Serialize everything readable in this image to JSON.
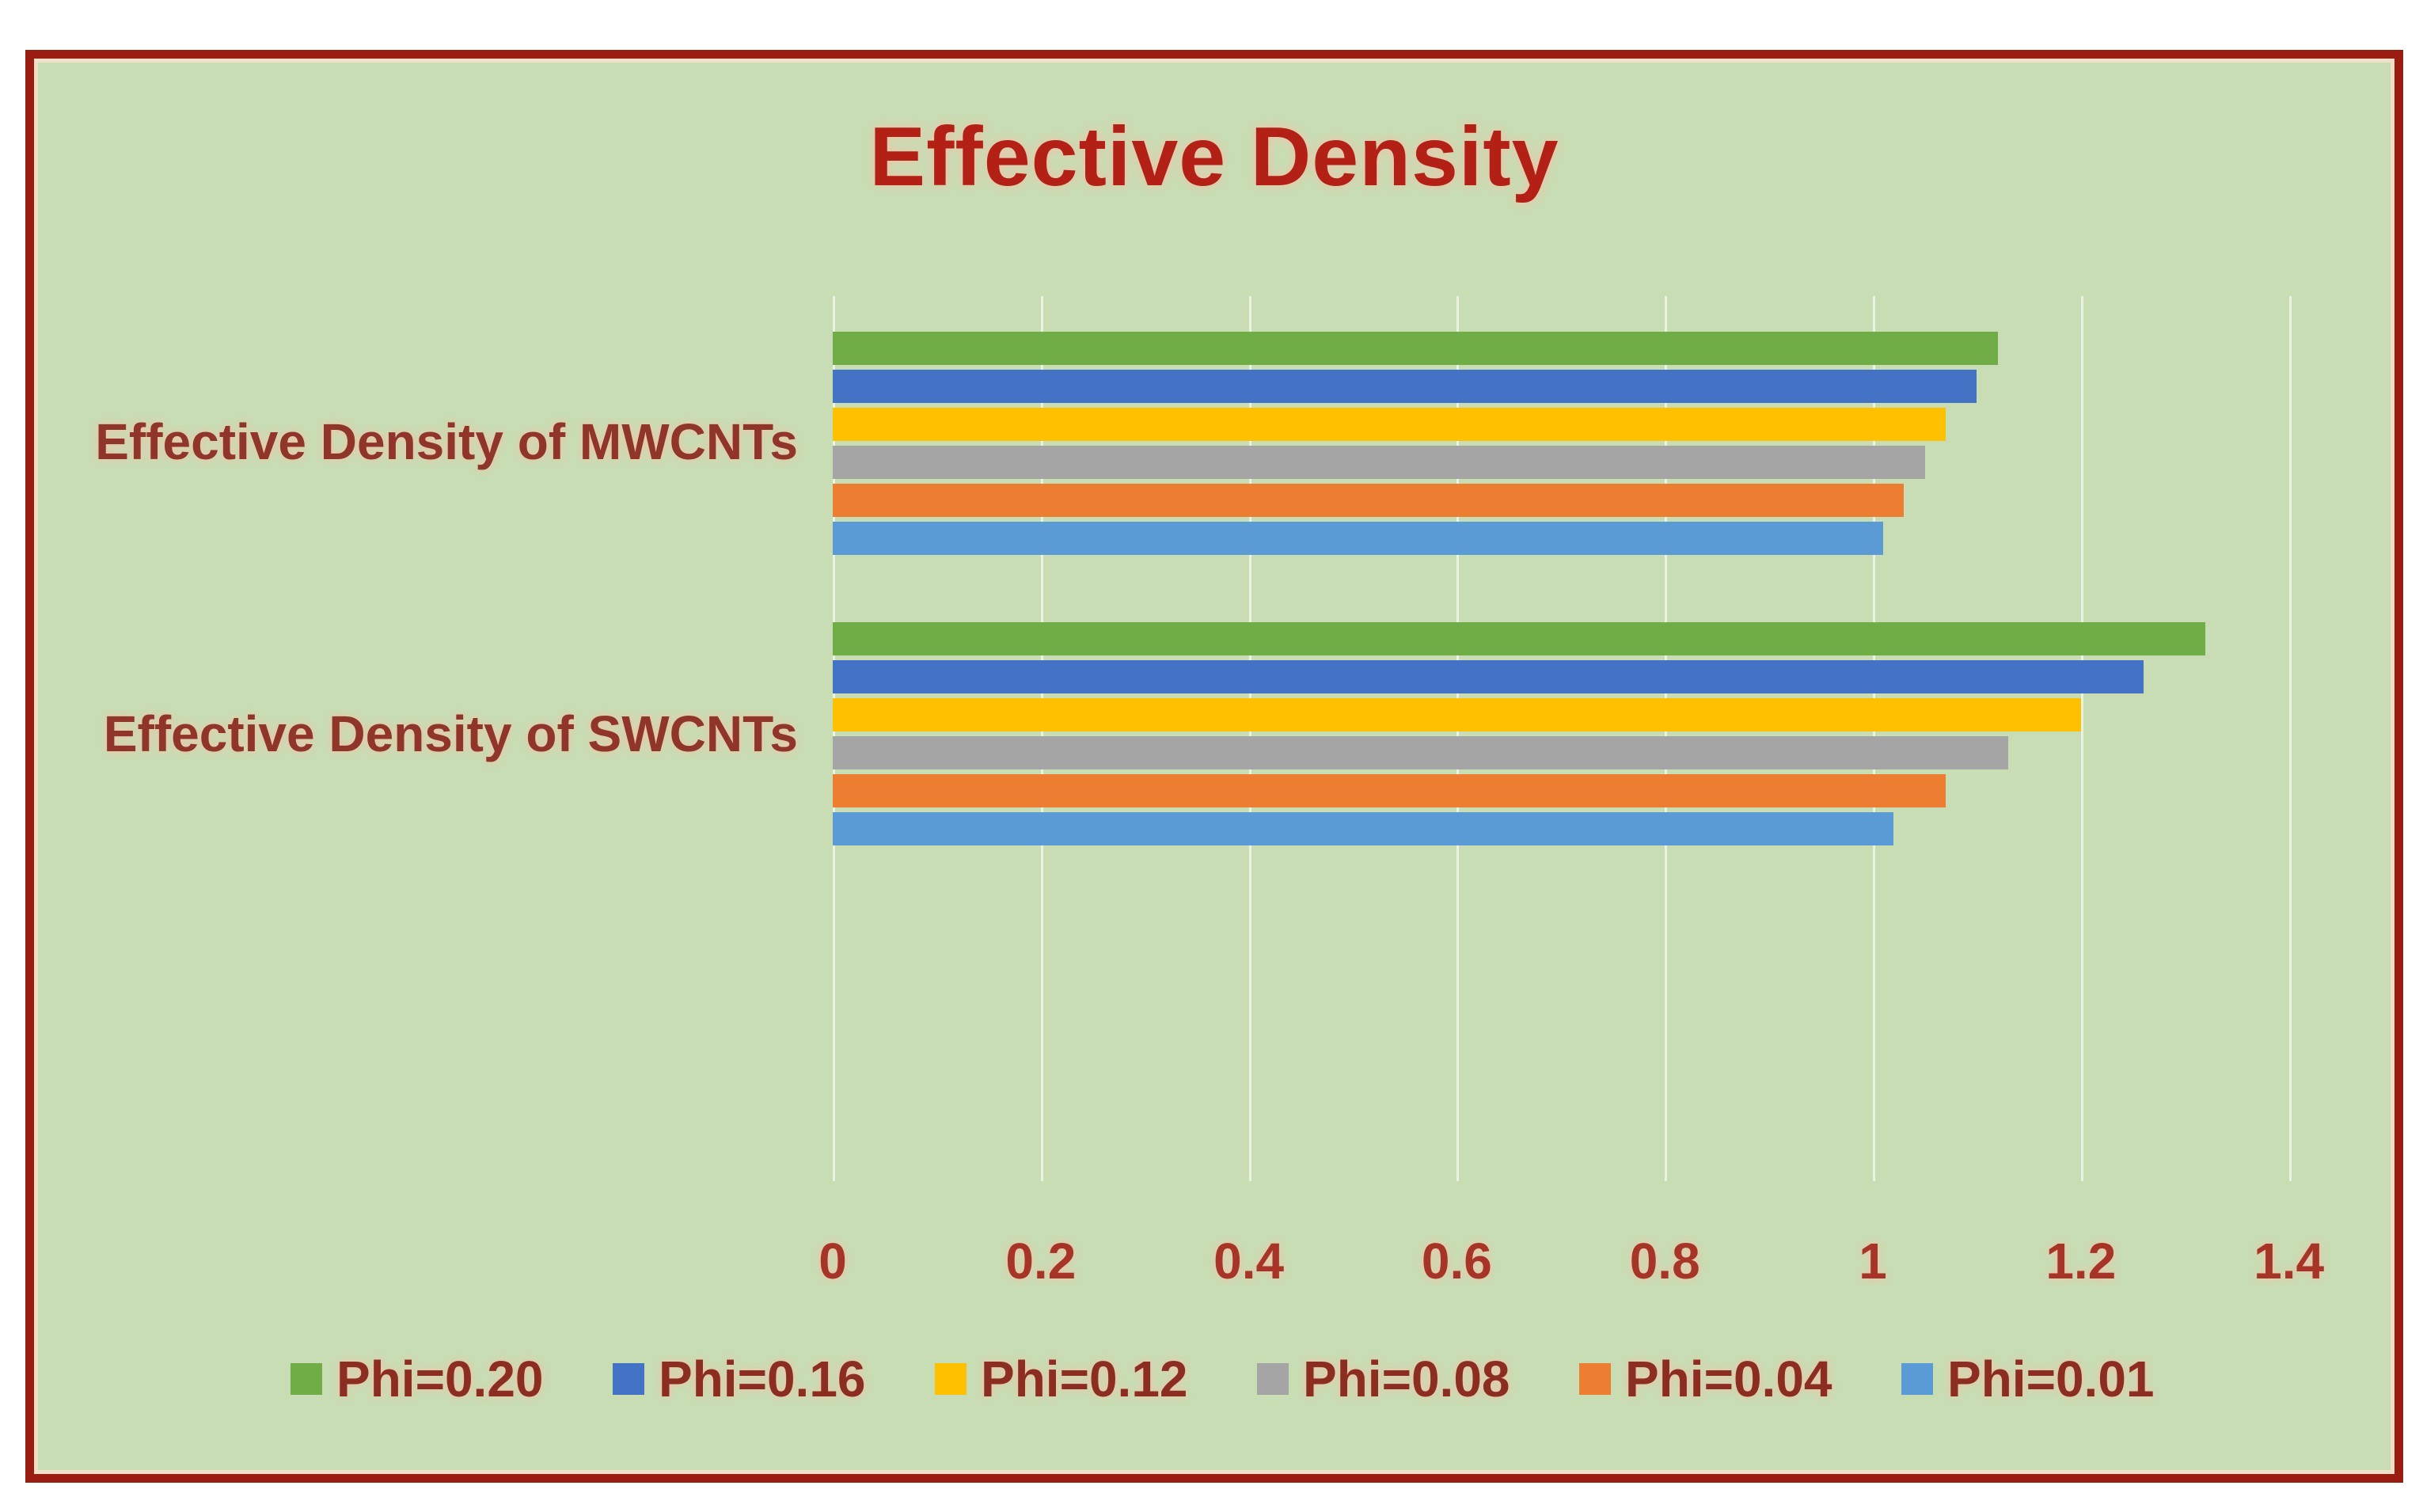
{
  "chart_data": {
    "type": "bar",
    "orientation": "horizontal",
    "title": "Effective Density",
    "categories": [
      "Effective Density of MWCNTs",
      "Effective Density of SWCNTs"
    ],
    "series": [
      {
        "name": "Phi=0.20",
        "color": "#70AD47",
        "values": [
          1.12,
          1.32
        ]
      },
      {
        "name": "Phi=0.16",
        "color": "#4472C4",
        "values": [
          1.1,
          1.26
        ]
      },
      {
        "name": "Phi=0.12",
        "color": "#FFC000",
        "values": [
          1.07,
          1.2
        ]
      },
      {
        "name": "Phi=0.08",
        "color": "#A5A5A5",
        "values": [
          1.05,
          1.13
        ]
      },
      {
        "name": "Phi=0.04",
        "color": "#ED7D31",
        "values": [
          1.03,
          1.07
        ]
      },
      {
        "name": "Phi=0.01",
        "color": "#5B9BD5",
        "values": [
          1.01,
          1.02
        ]
      }
    ],
    "x_axis": {
      "min": 0,
      "max": 1.4,
      "tick_step": 0.2,
      "tick_labels": [
        "0",
        "0.2",
        "0.4",
        "0.6",
        "0.8",
        "1",
        "1.2",
        "1.4"
      ],
      "gridlines": true
    },
    "legend_position": "bottom"
  },
  "colors": {
    "page_background": "#FFFFFF",
    "chart_background": "#C9DDB4",
    "frame_border": "#9B1C10",
    "title_text": "#B32015",
    "category_text": "#8F352A",
    "tick_text": "#A63427",
    "legend_text": "#8C2D22",
    "gridline": "rgba(255,255,255,0.62)"
  }
}
